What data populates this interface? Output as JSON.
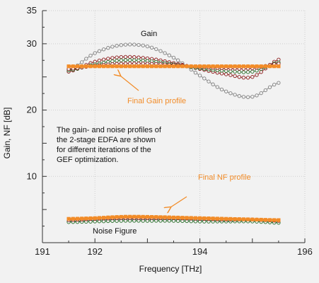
{
  "chart_data": {
    "type": "line",
    "xlabel": "Frequency [THz]",
    "ylabel": "Gain, NF [dB]",
    "xlim": [
      191,
      196
    ],
    "ylim": [
      0,
      35
    ],
    "x_ticks": [
      "191",
      "192",
      "194",
      "196"
    ],
    "y_ticks": [
      "10",
      "20",
      "30",
      "35"
    ],
    "grid": true,
    "x_range": [
      191.5,
      195.5
    ],
    "colors": {
      "final": "#f28c28",
      "iteration_1": "#808080",
      "iteration_2": "#8b1a1a",
      "iteration_3": "#2a6e2a",
      "noise_other": "#555555",
      "axis": "#333333",
      "grid": "#cfcfcf",
      "background": "#f2f2f2"
    },
    "gain_iterations": [
      {
        "x": [
          191.5,
          192.0,
          192.5,
          193.0,
          193.5,
          194.0,
          194.5,
          195.0,
          195.5
        ],
        "y": [
          26.0,
          28.6,
          29.8,
          29.6,
          27.9,
          25.2,
          22.8,
          22.0,
          24.1
        ]
      },
      {
        "x": [
          191.5,
          192.0,
          192.5,
          193.0,
          193.5,
          194.0,
          194.5,
          195.0,
          195.5
        ],
        "y": [
          25.8,
          27.3,
          28.0,
          27.8,
          27.1,
          26.2,
          25.4,
          25.0,
          27.6
        ]
      },
      {
        "x": [
          191.5,
          192.0,
          192.5,
          193.0,
          193.5,
          194.0,
          194.5,
          195.0,
          195.5
        ],
        "y": [
          26.0,
          26.9,
          27.5,
          27.4,
          26.9,
          26.3,
          25.9,
          25.8,
          27.2
        ]
      },
      {
        "x": [
          191.5,
          192.0,
          192.5,
          193.0,
          193.5,
          194.0,
          194.5,
          195.0,
          195.5
        ],
        "y": [
          26.2,
          26.7,
          27.0,
          27.0,
          26.8,
          26.5,
          26.3,
          26.3,
          27.0
        ]
      }
    ],
    "gain_final": {
      "x": [
        191.5,
        192.0,
        192.5,
        193.0,
        193.5,
        194.0,
        194.5,
        195.0,
        195.5
      ],
      "y": [
        26.6,
        26.6,
        26.6,
        26.6,
        26.6,
        26.6,
        26.6,
        26.6,
        26.6
      ]
    },
    "nf_iterations": [
      {
        "x": [
          191.5,
          192.0,
          192.5,
          193.0,
          193.5,
          194.0,
          194.5,
          195.0,
          195.5
        ],
        "y": [
          3.2,
          3.4,
          3.5,
          3.5,
          3.5,
          3.4,
          3.3,
          3.3,
          3.1
        ]
      },
      {
        "x": [
          191.5,
          192.0,
          192.5,
          193.0,
          193.5,
          194.0,
          194.5,
          195.0,
          195.5
        ],
        "y": [
          3.1,
          3.2,
          3.3,
          3.3,
          3.3,
          3.2,
          3.2,
          3.2,
          3.0
        ]
      },
      {
        "x": [
          191.5,
          192.0,
          192.5,
          193.0,
          193.5,
          194.0,
          194.5,
          195.0,
          195.5
        ],
        "y": [
          3.4,
          3.6,
          3.7,
          3.7,
          3.7,
          3.6,
          3.5,
          3.5,
          3.3
        ]
      }
    ],
    "nf_final": {
      "x": [
        191.5,
        192.0,
        192.5,
        193.0,
        193.5,
        194.0,
        194.5,
        195.0,
        195.5
      ],
      "y": [
        3.6,
        3.7,
        3.9,
        3.9,
        3.8,
        3.7,
        3.6,
        3.5,
        3.4
      ]
    },
    "annotations": {
      "gain_label": "Gain",
      "final_gain": "Final Gain profile",
      "description": [
        "The gain- and noise profiles of",
        "the 2-stage EDFA are shown",
        "for different iterations of the",
        "GEF optimization."
      ],
      "final_nf": "Final NF profile",
      "noise_label": "Noise Figure"
    }
  }
}
